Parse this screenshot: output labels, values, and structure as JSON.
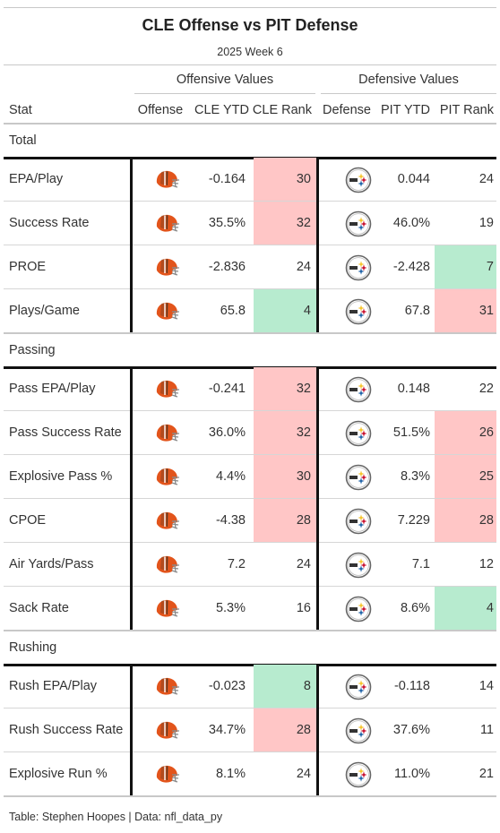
{
  "colors": {
    "good": "#b7ebcf",
    "bad": "#ffc6c6",
    "browns_orange": "#e2541b",
    "browns_brown": "#5a3a22",
    "steelers_gold": "#f6c42b",
    "steelers_blue": "#1f63a8",
    "steelers_red": "#c8102e"
  },
  "chart_data": {
    "type": "table",
    "title": "CLE Offense vs PIT Defense",
    "subtitle": "2025 Week 6",
    "spanners": {
      "offense": "Offensive Values",
      "defense": "Defensive Values"
    },
    "columns": [
      "Stat",
      "Offense",
      "CLE YTD",
      "CLE Rank",
      "Defense",
      "PIT YTD",
      "PIT Rank"
    ],
    "groups": [
      {
        "name": "Total",
        "rows": [
          {
            "stat": "EPA/Play",
            "cle_ytd": "-0.164",
            "cle_rank": 30,
            "cle_shade": "bad",
            "pit_ytd": "0.044",
            "pit_rank": 24,
            "pit_shade": "none"
          },
          {
            "stat": "Success Rate",
            "cle_ytd": "35.5%",
            "cle_rank": 32,
            "cle_shade": "bad",
            "pit_ytd": "46.0%",
            "pit_rank": 19,
            "pit_shade": "none"
          },
          {
            "stat": "PROE",
            "cle_ytd": "-2.836",
            "cle_rank": 24,
            "cle_shade": "none",
            "pit_ytd": "-2.428",
            "pit_rank": 7,
            "pit_shade": "good"
          },
          {
            "stat": "Plays/Game",
            "cle_ytd": "65.8",
            "cle_rank": 4,
            "cle_shade": "good",
            "pit_ytd": "67.8",
            "pit_rank": 31,
            "pit_shade": "bad"
          }
        ]
      },
      {
        "name": "Passing",
        "rows": [
          {
            "stat": "Pass EPA/Play",
            "cle_ytd": "-0.241",
            "cle_rank": 32,
            "cle_shade": "bad",
            "pit_ytd": "0.148",
            "pit_rank": 22,
            "pit_shade": "none"
          },
          {
            "stat": "Pass Success Rate",
            "cle_ytd": "36.0%",
            "cle_rank": 32,
            "cle_shade": "bad",
            "pit_ytd": "51.5%",
            "pit_rank": 26,
            "pit_shade": "bad"
          },
          {
            "stat": "Explosive Pass %",
            "cle_ytd": "4.4%",
            "cle_rank": 30,
            "cle_shade": "bad",
            "pit_ytd": "8.3%",
            "pit_rank": 25,
            "pit_shade": "bad"
          },
          {
            "stat": "CPOE",
            "cle_ytd": "-4.38",
            "cle_rank": 28,
            "cle_shade": "bad",
            "pit_ytd": "7.229",
            "pit_rank": 28,
            "pit_shade": "bad"
          },
          {
            "stat": "Air Yards/Pass",
            "cle_ytd": "7.2",
            "cle_rank": 24,
            "cle_shade": "none",
            "pit_ytd": "7.1",
            "pit_rank": 12,
            "pit_shade": "none"
          },
          {
            "stat": "Sack Rate",
            "cle_ytd": "5.3%",
            "cle_rank": 16,
            "cle_shade": "none",
            "pit_ytd": "8.6%",
            "pit_rank": 4,
            "pit_shade": "good"
          }
        ]
      },
      {
        "name": "Rushing",
        "rows": [
          {
            "stat": "Rush EPA/Play",
            "cle_ytd": "-0.023",
            "cle_rank": 8,
            "cle_shade": "good",
            "pit_ytd": "-0.118",
            "pit_rank": 14,
            "pit_shade": "none"
          },
          {
            "stat": "Rush Success Rate",
            "cle_ytd": "34.7%",
            "cle_rank": 28,
            "cle_shade": "bad",
            "pit_ytd": "37.6%",
            "pit_rank": 11,
            "pit_shade": "none"
          },
          {
            "stat": "Explosive Run %",
            "cle_ytd": "8.1%",
            "cle_rank": 24,
            "cle_shade": "none",
            "pit_ytd": "11.0%",
            "pit_rank": 21,
            "pit_shade": "none"
          }
        ]
      }
    ],
    "footer": "Table: Stephen Hoopes | Data: nfl_data_py"
  }
}
